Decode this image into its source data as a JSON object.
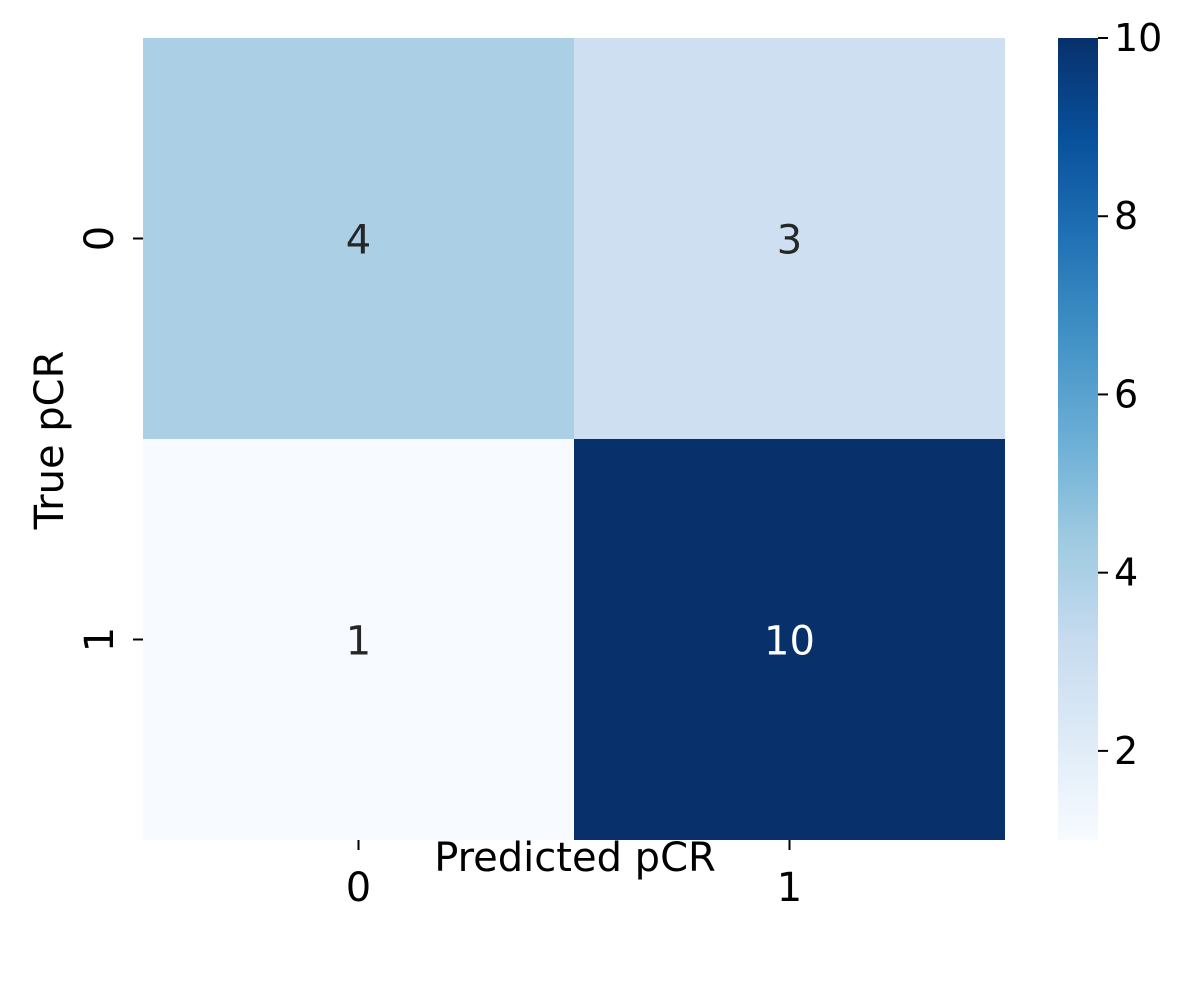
{
  "chart_data": {
    "type": "heatmap",
    "title": "",
    "xlabel": "Predicted pCR",
    "ylabel": "True pCR",
    "x_categories": [
      "0",
      "1"
    ],
    "y_categories": [
      "0",
      "1"
    ],
    "values": [
      [
        4,
        3
      ],
      [
        1,
        10
      ]
    ],
    "colorbar": {
      "range": [
        1,
        10
      ],
      "ticks": [
        2,
        4,
        6,
        8,
        10
      ],
      "colormap": "Blues"
    },
    "colors": {
      "cell_0_0": "#abcfe5",
      "cell_0_1": "#cddff0",
      "cell_1_0": "#f7fbff",
      "cell_1_1": "#08306b",
      "annotation_dark": "#262626",
      "annotation_light": "#ffffff"
    }
  }
}
